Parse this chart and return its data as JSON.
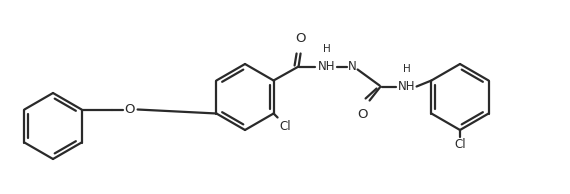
{
  "bg_color": "#ffffff",
  "line_color": "#2a2a2a",
  "line_width": 1.6,
  "font_size": 8.5,
  "figsize": [
    5.7,
    1.94
  ],
  "dpi": 100,
  "xlim": [
    0,
    570
  ],
  "ylim": [
    0,
    194
  ]
}
